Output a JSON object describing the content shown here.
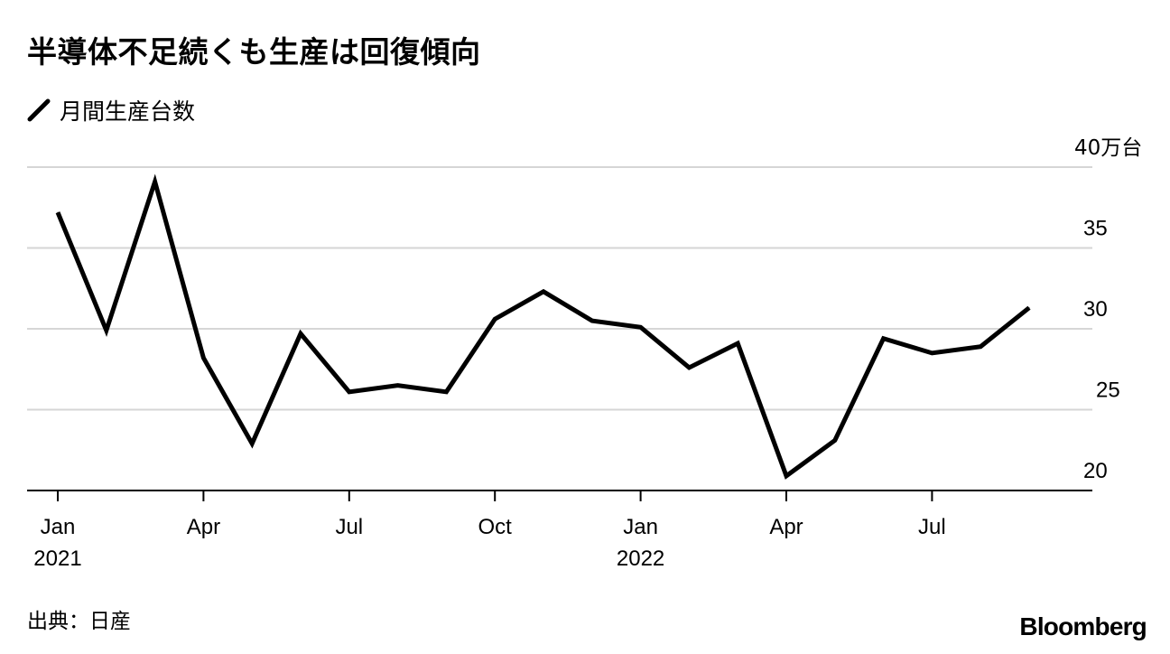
{
  "title": "半導体不足続くも生産は回復傾向",
  "legend": {
    "label": "月間生産台数",
    "color": "#000000"
  },
  "source": "出典：日産",
  "brand": "Bloomberg",
  "chart_data": {
    "type": "line",
    "title": "半導体不足続くも生産は回復傾向",
    "y_unit": "万台",
    "ylim": [
      20,
      40
    ],
    "y_ticks": [
      {
        "value": 40,
        "label": "40万台"
      },
      {
        "value": 35,
        "label": "35"
      },
      {
        "value": 30,
        "label": "30"
      },
      {
        "value": 25,
        "label": "25"
      },
      {
        "value": 20,
        "label": "20"
      }
    ],
    "grid": true,
    "y_axis_side": "right",
    "x_ticks": [
      {
        "index": 0,
        "label": "Jan",
        "year": "2021"
      },
      {
        "index": 3,
        "label": "Apr"
      },
      {
        "index": 6,
        "label": "Jul"
      },
      {
        "index": 9,
        "label": "Oct"
      },
      {
        "index": 12,
        "label": "Jan",
        "year": "2022"
      },
      {
        "index": 15,
        "label": "Apr"
      },
      {
        "index": 18,
        "label": "Jul"
      }
    ],
    "x": [
      "2021-01",
      "2021-02",
      "2021-03",
      "2021-04",
      "2021-05",
      "2021-06",
      "2021-07",
      "2021-08",
      "2021-09",
      "2021-10",
      "2021-11",
      "2021-12",
      "2022-01",
      "2022-02",
      "2022-03",
      "2022-04",
      "2022-05",
      "2022-06",
      "2022-07",
      "2022-08",
      "2022-09"
    ],
    "series": [
      {
        "name": "月間生産台数",
        "color": "#000000",
        "values": [
          37.2,
          29.9,
          39.1,
          28.2,
          22.9,
          29.7,
          26.1,
          26.5,
          26.1,
          30.6,
          32.3,
          30.5,
          30.1,
          27.6,
          29.1,
          20.9,
          23.1,
          29.4,
          28.5,
          28.9,
          31.3
        ]
      }
    ]
  }
}
